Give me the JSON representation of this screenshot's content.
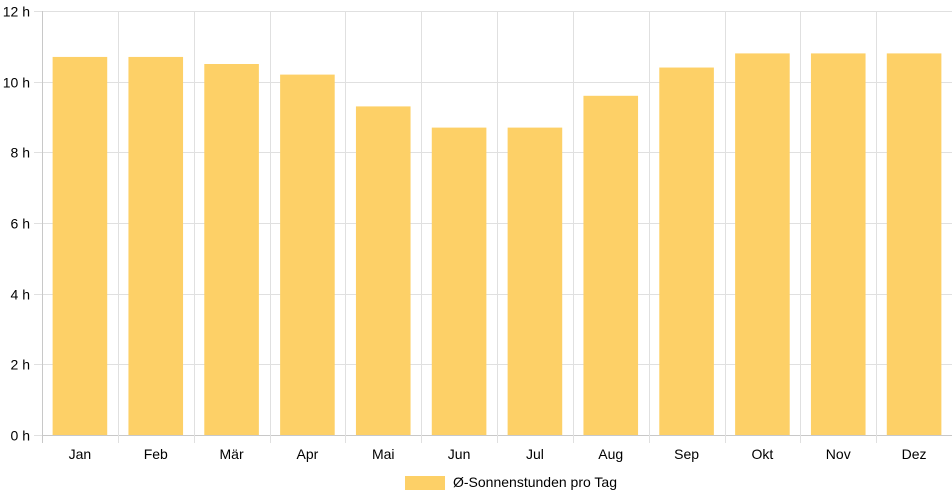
{
  "chart_data": {
    "type": "bar",
    "categories": [
      "Jan",
      "Feb",
      "Mär",
      "Apr",
      "Mai",
      "Jun",
      "Jul",
      "Aug",
      "Sep",
      "Okt",
      "Nov",
      "Dez"
    ],
    "series": [
      {
        "name": "Ø-Sonnenstunden pro Tag",
        "values": [
          10.7,
          10.7,
          10.5,
          10.2,
          9.3,
          8.7,
          8.7,
          9.6,
          10.4,
          10.8,
          10.8,
          10.8
        ],
        "color": "#fdd067"
      }
    ],
    "ylim": [
      0,
      12
    ],
    "yticks": [
      0,
      2,
      4,
      6,
      8,
      10,
      12
    ],
    "ytick_suffix": " h",
    "grid": true,
    "legend": "bottom-center",
    "colors": {
      "grid": "#e0e0e0",
      "axis": "#c8c8c8",
      "bar": "#fdd067"
    }
  }
}
